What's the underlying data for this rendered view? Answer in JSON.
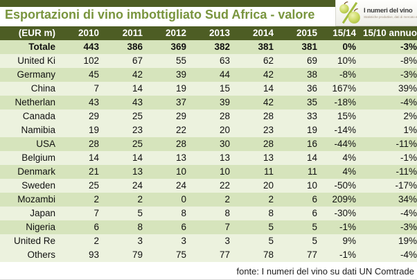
{
  "page": {
    "footer": "fonte: I numeri del vino su dati UN Comtrade"
  },
  "logo": {
    "name": "I numeri del vino",
    "tagline": "Statistiche produttive, dati di mercato e di consumo.",
    "icon": "percent-grapes-icon"
  },
  "colors": {
    "accent_dark_olive": "#4d5d24",
    "title_green": "#79953e",
    "row_band_green": "#d6e4bc",
    "row_band_pale": "#ecf2de",
    "header_text": "#ffffff",
    "logo_grape_green": "#b9cd4e"
  },
  "chart_data": {
    "type": "table",
    "title": "Esportazioni di vino imbottigliato Sud Africa - valore",
    "unit_label": "(EUR m)",
    "columns": [
      "(EUR m)",
      "2010",
      "2011",
      "2012",
      "2013",
      "2014",
      "2015",
      "15/14",
      "15/10 annuo"
    ],
    "rows": [
      {
        "label": "Totale",
        "bold": true,
        "band": "green",
        "values": [
          "443",
          "386",
          "369",
          "382",
          "381",
          "381",
          "0%",
          "-3%"
        ]
      },
      {
        "label": "United Ki",
        "bold": false,
        "band": "pale",
        "values": [
          "102",
          "67",
          "55",
          "63",
          "62",
          "69",
          "10%",
          "-8%"
        ]
      },
      {
        "label": "Germany",
        "bold": false,
        "band": "green",
        "values": [
          "45",
          "42",
          "39",
          "44",
          "42",
          "38",
          "-8%",
          "-3%"
        ]
      },
      {
        "label": "China",
        "bold": false,
        "band": "pale",
        "values": [
          "7",
          "14",
          "19",
          "15",
          "14",
          "36",
          "167%",
          "39%"
        ]
      },
      {
        "label": "Netherlan",
        "bold": false,
        "band": "green",
        "values": [
          "43",
          "43",
          "37",
          "39",
          "42",
          "35",
          "-18%",
          "-4%"
        ]
      },
      {
        "label": "Canada",
        "bold": false,
        "band": "pale",
        "values": [
          "29",
          "25",
          "29",
          "28",
          "28",
          "33",
          "15%",
          "2%"
        ]
      },
      {
        "label": "Namibia",
        "bold": false,
        "band": "pale",
        "values": [
          "19",
          "23",
          "22",
          "20",
          "23",
          "19",
          "-14%",
          "1%"
        ]
      },
      {
        "label": "USA",
        "bold": false,
        "band": "green",
        "values": [
          "28",
          "25",
          "28",
          "30",
          "28",
          "16",
          "-44%",
          "-11%"
        ]
      },
      {
        "label": "Belgium",
        "bold": false,
        "band": "pale",
        "values": [
          "14",
          "14",
          "13",
          "13",
          "13",
          "14",
          "4%",
          "-1%"
        ]
      },
      {
        "label": "Denmark",
        "bold": false,
        "band": "green",
        "values": [
          "21",
          "13",
          "10",
          "10",
          "11",
          "11",
          "4%",
          "-11%"
        ]
      },
      {
        "label": "Sweden",
        "bold": false,
        "band": "pale",
        "values": [
          "25",
          "24",
          "24",
          "22",
          "20",
          "10",
          "-50%",
          "-17%"
        ]
      },
      {
        "label": "Mozambi",
        "bold": false,
        "band": "green",
        "values": [
          "2",
          "2",
          "0",
          "2",
          "2",
          "6",
          "209%",
          "34%"
        ]
      },
      {
        "label": "Japan",
        "bold": false,
        "band": "pale",
        "values": [
          "7",
          "5",
          "8",
          "8",
          "8",
          "6",
          "-30%",
          "-4%"
        ]
      },
      {
        "label": "Nigeria",
        "bold": false,
        "band": "green",
        "values": [
          "6",
          "8",
          "6",
          "7",
          "5",
          "5",
          "-1%",
          "-3%"
        ]
      },
      {
        "label": "United Re",
        "bold": false,
        "band": "pale",
        "values": [
          "2",
          "3",
          "3",
          "3",
          "5",
          "5",
          "9%",
          "19%"
        ]
      },
      {
        "label": "Others",
        "bold": false,
        "band": "pale",
        "values": [
          "93",
          "79",
          "75",
          "77",
          "78",
          "77",
          "-1%",
          "-4%"
        ]
      }
    ]
  }
}
